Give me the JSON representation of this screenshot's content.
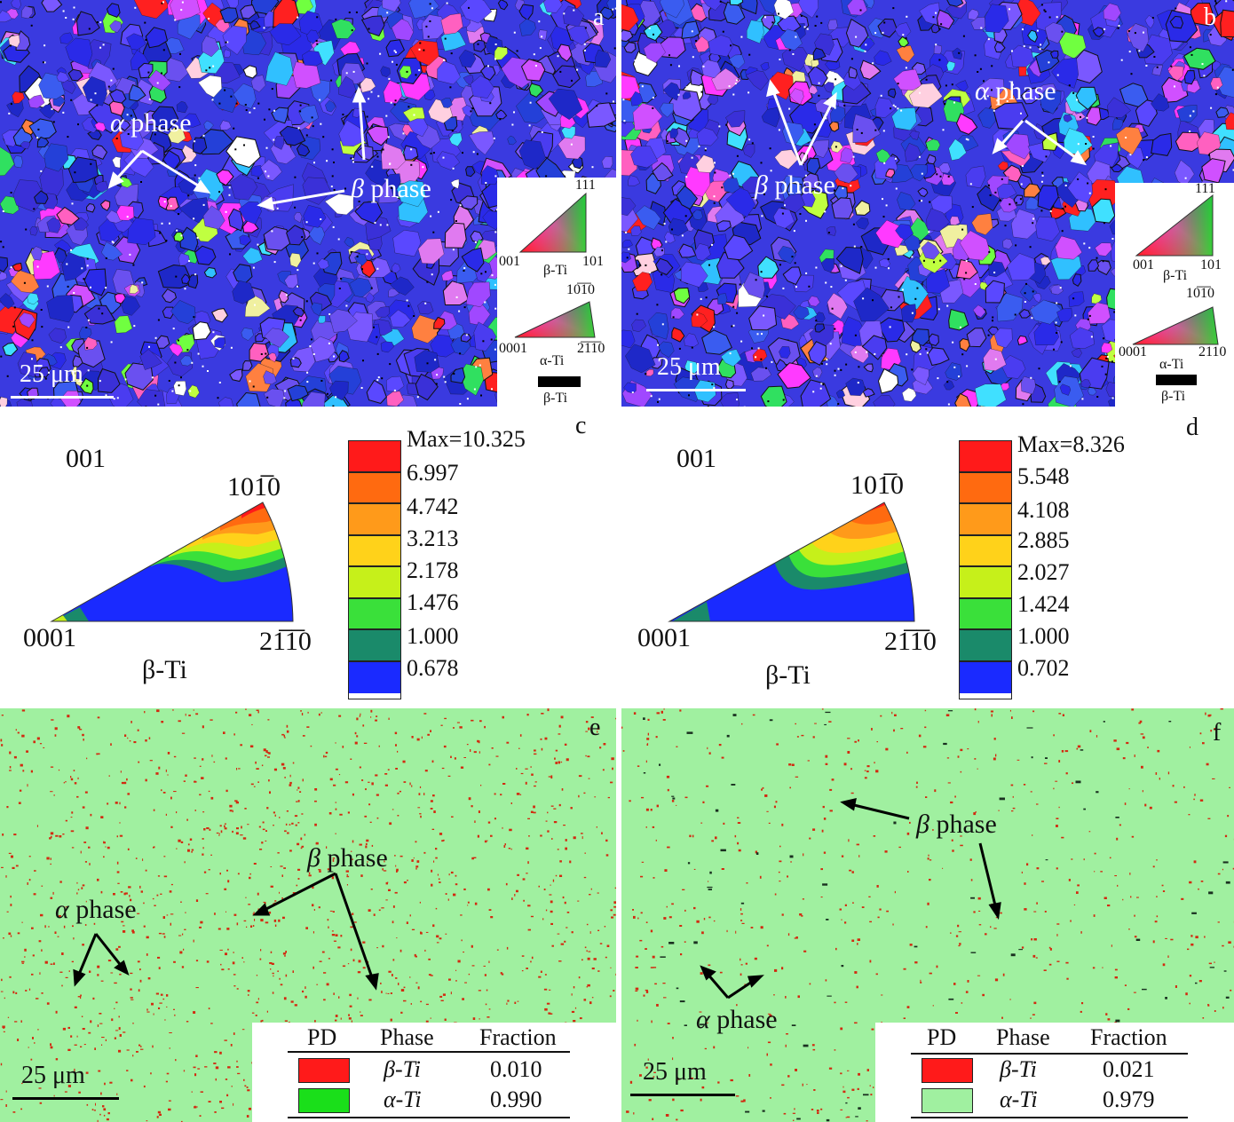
{
  "panels": {
    "a": {
      "label": "a",
      "scale": "25 μm",
      "ann_alpha": "phase",
      "ann_beta": "phase"
    },
    "b": {
      "label": "b",
      "scale": "25 μm",
      "ann_alpha": "phase",
      "ann_beta": "phase"
    },
    "c": {
      "label": "c"
    },
    "d": {
      "label": "d"
    },
    "e": {
      "label": "e",
      "scale": "25 μm",
      "ann_alpha": "phase",
      "ann_beta": "phase"
    },
    "f": {
      "label": "f",
      "scale": "25 μm",
      "ann_alpha": "phase",
      "ann_beta": "phase"
    }
  },
  "symbols": {
    "alpha": "α",
    "beta": "β"
  },
  "ipf_key": {
    "beta_labels": [
      "111",
      "001",
      "101",
      "β-Ti"
    ],
    "alpha_labels": [
      "10̅1̅0",
      "0001",
      "2̅1̅1̅0",
      "α-Ti"
    ],
    "alpha_labels_b": [
      "10̅1̅0",
      "0001",
      "2110",
      "α-Ti"
    ],
    "black_label": "β-Ti"
  },
  "pole_c": {
    "top": "001",
    "apex": "101̅0",
    "left": "0001",
    "right": "21̅1̅0",
    "name": "β-Ti",
    "levels": [
      "Max=10.325",
      "6.997",
      "4.742",
      "3.213",
      "2.178",
      "1.476",
      "1.000",
      "0.678"
    ]
  },
  "pole_d": {
    "top": "001",
    "apex": "101̅0",
    "left": "0001",
    "right": "21̅1̅0",
    "name": "β-Ti",
    "levels": [
      "Max=8.326",
      "5.548",
      "4.108",
      "2.885",
      "2.027",
      "1.424",
      "1.000",
      "0.702"
    ]
  },
  "colorbar_colors": [
    "#ff1a1a",
    "#ff6a10",
    "#ff9a1a",
    "#ffd21a",
    "#c6f01a",
    "#3ae03a",
    "#1a8a6a",
    "#1a2aff"
  ],
  "table_e": {
    "headers": [
      "PD",
      "Phase",
      "Fraction"
    ],
    "rows": [
      {
        "phase": "β-Ti",
        "fraction": "0.010",
        "color": "#ff1a1a"
      },
      {
        "phase": "α-Ti",
        "fraction": "0.990",
        "color": "#1adf1a"
      }
    ]
  },
  "table_f": {
    "headers": [
      "PD",
      "Phase",
      "Fraction"
    ],
    "rows": [
      {
        "phase": "β-Ti",
        "fraction": "0.021",
        "color": "#ff1a1a"
      },
      {
        "phase": "α-Ti",
        "fraction": "0.979",
        "color": "#a0f0a0"
      }
    ]
  },
  "colors": {
    "phase_bg": "#a0f0a0",
    "beta_speck": "#d22a10",
    "arrow_white": "#ffffff",
    "arrow_black": "#000000"
  }
}
